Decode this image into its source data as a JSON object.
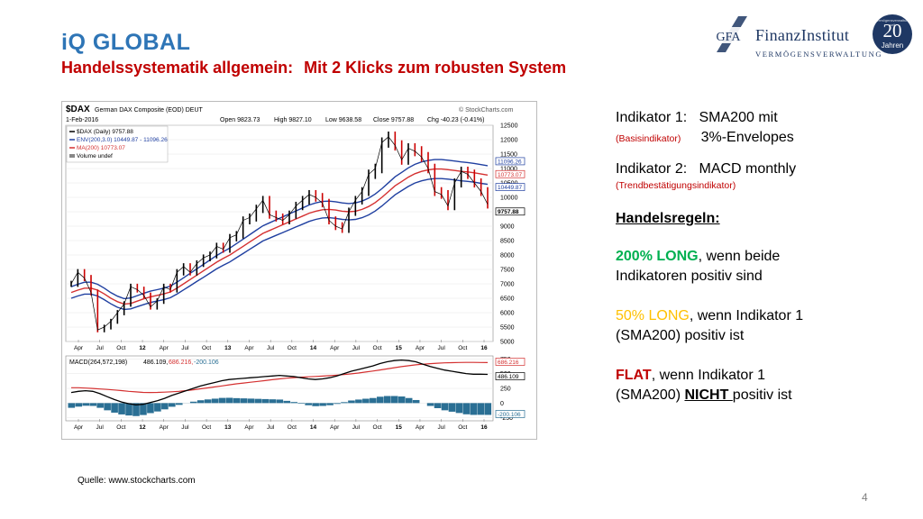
{
  "header": {
    "title": "iQ GLOBAL",
    "subtitle_part1": "Handelssystematik allgemein:",
    "subtitle_part2": "Mit 2 Klicks zum robusten System"
  },
  "logo": {
    "monogram": "GFA",
    "name": "FinanzInstitut",
    "tagline": "VERMÖGENSVERWALTUNG",
    "badge_small": "Vermögensverwaltung seit",
    "badge_number": "20",
    "badge_label": "Jahren"
  },
  "chart_header": {
    "symbol": "$DAX",
    "name": "German DAX Composite (EOD) DEUT",
    "date": "1-Feb-2016",
    "watermark": "© StockCharts.com",
    "open": "Open 9823.73",
    "high": "High 9827.10",
    "low": "Low 9638.58",
    "close": "Close 9757.88",
    "chg": "Chg -40.23 (-0.41%)",
    "legend_dax": "$DAX (Daily) 9757.88",
    "legend_env": "ENV(200,3.0) 10449.87 - 11096.26",
    "legend_ma": "MA(200) 10773.07",
    "legend_vol": "Volume undef",
    "macd_label": "MACD(264,572,198)",
    "macd_values": [
      "486.109,",
      "686.216,",
      "-200.106"
    ]
  },
  "chart_data": {
    "type": "line",
    "price_axis_ticks": [
      "12500",
      "12000",
      "11500",
      "11000",
      "10500",
      "10000",
      "9500",
      "9000",
      "8500",
      "8000",
      "7500",
      "7000",
      "6500",
      "6000",
      "5500",
      "5000"
    ],
    "price_tags": [
      "11096.26",
      "10773.07",
      "10449.87",
      "9757.88"
    ],
    "macd_axis_ticks": [
      "750",
      "500",
      "250",
      "0",
      "-250"
    ],
    "macd_tags": [
      "686.216",
      "486.109",
      "-200.106"
    ],
    "x_ticks": [
      "Apr",
      "Jul",
      "Oct",
      "12",
      "Apr",
      "Jul",
      "Oct",
      "13",
      "Apr",
      "Jul",
      "Oct",
      "14",
      "Apr",
      "Jul",
      "Oct",
      "15",
      "Apr",
      "Jul",
      "Oct",
      "16"
    ],
    "ylim": [
      5000,
      12500
    ],
    "series": [
      {
        "name": "$DAX (Daily) 9757.88",
        "values": [
          7000,
          7400,
          7200,
          6700,
          5400,
          5500,
          5700,
          6000,
          6300,
          6900,
          6800,
          6600,
          6200,
          6400,
          6900,
          6800,
          7400,
          7600,
          7400,
          7700,
          7900,
          8000,
          8300,
          8200,
          8600,
          8700,
          9200,
          9300,
          9600,
          9900,
          9400,
          9300,
          9200,
          9400,
          9700,
          9900,
          10100,
          10000,
          9800,
          9200,
          9000,
          8900,
          9500,
          9900,
          10200,
          10800,
          11000,
          11900,
          12100,
          11800,
          11300,
          11700,
          11600,
          11400,
          11000,
          10200,
          10100,
          9700,
          10500,
          10900,
          10800,
          10500,
          10200,
          9757.88
        ]
      },
      {
        "name": "ENV(200,3.0) 10449.87 - 11096.26",
        "values": []
      },
      {
        "name": "MA(200) 10773.07",
        "values": [
          6700,
          6780,
          6850,
          6850,
          6780,
          6650,
          6500,
          6380,
          6300,
          6320,
          6400,
          6480,
          6550,
          6600,
          6650,
          6720,
          6850,
          7000,
          7150,
          7300,
          7450,
          7600,
          7750,
          7880,
          8000,
          8150,
          8300,
          8450,
          8600,
          8750,
          8850,
          8950,
          9050,
          9150,
          9250,
          9350,
          9450,
          9520,
          9570,
          9580,
          9560,
          9520,
          9500,
          9520,
          9580,
          9680,
          9820,
          10000,
          10200,
          10400,
          10550,
          10700,
          10820,
          10900,
          10950,
          10980,
          10980,
          10960,
          10930,
          10900,
          10880,
          10850,
          10810,
          10773.07
        ]
      }
    ],
    "macd_series": [
      {
        "name": "MACD",
        "values": [
          180,
          200,
          210,
          200,
          160,
          110,
          60,
          20,
          -10,
          -30,
          -20,
          10,
          40,
          80,
          130,
          170,
          210,
          250,
          290,
          320,
          350,
          380,
          400,
          410,
          420,
          430,
          440,
          450,
          460,
          470,
          460,
          450,
          430,
          410,
          400,
          410,
          430,
          460,
          500,
          540,
          570,
          600,
          630,
          670,
          700,
          720,
          730,
          720,
          700,
          660,
          620,
          590,
          560,
          540,
          520,
          500,
          490,
          490,
          486.109
        ]
      },
      {
        "name": "Signal",
        "values": [
          260,
          260,
          255,
          248,
          240,
          232,
          222,
          212,
          200,
          190,
          182,
          180,
          182,
          186,
          192,
          200,
          212,
          226,
          242,
          258,
          275,
          292,
          310,
          326,
          340,
          354,
          368,
          382,
          396,
          410,
          422,
          432,
          440,
          446,
          452,
          458,
          466,
          474,
          484,
          496,
          510,
          526,
          544,
          562,
          580,
          600,
          618,
          634,
          648,
          660,
          668,
          676,
          682,
          686,
          688,
          690,
          690,
          689,
          686.216
        ]
      }
    ],
    "macd_ylim": [
      -300,
      800
    ]
  },
  "right": {
    "ind1_label": "Indikator 1:",
    "ind1_value": "SMA200 mit",
    "ind1_sub": "(Basisindikator)",
    "ind1_value2": "3%-Envelopes",
    "ind2_label": "Indikator 2:",
    "ind2_value": "MACD monthly",
    "ind2_sub": "(Trendbestätigungsindikator)",
    "rules_heading": "Handelsregeln:",
    "rule1_head": "200% LONG",
    "rule1_tail": ", wenn beide",
    "rule1_line2": "Indikatoren positiv sind",
    "rule2_head": "50% LONG",
    "rule2_tail": ", wenn Indikator 1",
    "rule2_line2": "(SMA200) positiv ist",
    "rule3_head": "FLAT",
    "rule3_tail": ", wenn Indikator 1",
    "rule3_line2a": "(SMA200) ",
    "rule3_line2b": "NICHT ",
    "rule3_line2c": "positiv ist"
  },
  "footer": {
    "source": "Quelle: www.stockcharts.com",
    "page_number": "4"
  },
  "colors": {
    "title": "#2e75b6",
    "subtitle": "#c00000",
    "price_bars": "#000000",
    "down_bars": "#cc0000",
    "envelope": "#1f3fa0",
    "ma": "#d43030",
    "macd_hist": "#2a6f94",
    "long_green": "#00b050",
    "half_orange": "#ffc000",
    "flat_red": "#c00000"
  }
}
